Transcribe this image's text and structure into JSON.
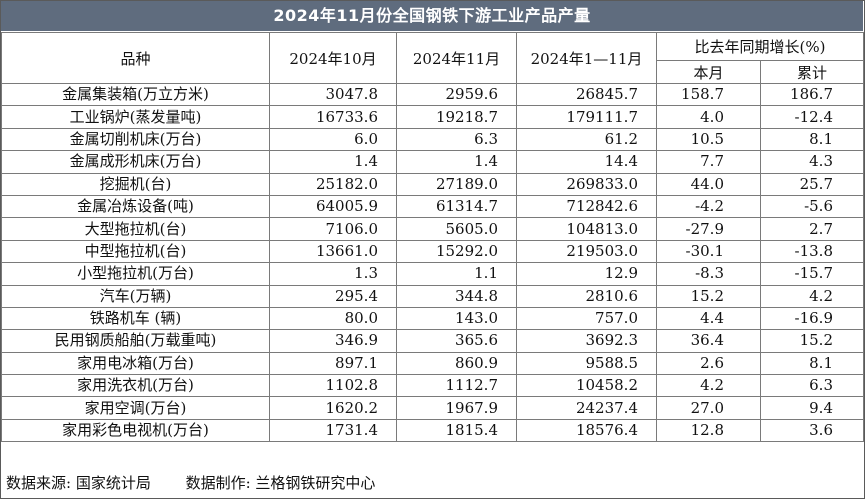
{
  "title": "2024年11月份全国钢铁下游工业产品产量",
  "header": {
    "variety": "品种",
    "oct": "2024年10月",
    "nov": "2024年11月",
    "ytd": "2024年1—11月",
    "growth": "比去年同期增长(%)",
    "month": "本月",
    "cumulative": "累计"
  },
  "rows": [
    {
      "name": "金属集装箱(万立方米)",
      "oct": "3047.8",
      "nov": "2959.6",
      "ytd": "26845.7",
      "month": "158.7",
      "cum": "186.7"
    },
    {
      "name": "工业锅炉(蒸发量吨)",
      "oct": "16733.6",
      "nov": "19218.7",
      "ytd": "179111.7",
      "month": "4.0",
      "cum": "-12.4"
    },
    {
      "name": "金属切削机床(万台)",
      "oct": "6.0",
      "nov": "6.3",
      "ytd": "61.2",
      "month": "10.5",
      "cum": "8.1"
    },
    {
      "name": "金属成形机床(万台)",
      "oct": "1.4",
      "nov": "1.4",
      "ytd": "14.4",
      "month": "7.7",
      "cum": "4.3"
    },
    {
      "name": "挖掘机(台)",
      "oct": "25182.0",
      "nov": "27189.0",
      "ytd": "269833.0",
      "month": "44.0",
      "cum": "25.7"
    },
    {
      "name": "金属冶炼设备(吨)",
      "oct": "64005.9",
      "nov": "61314.7",
      "ytd": "712842.6",
      "month": "-4.2",
      "cum": "-5.6"
    },
    {
      "name": "大型拖拉机(台)",
      "oct": "7106.0",
      "nov": "5605.0",
      "ytd": "104813.0",
      "month": "-27.9",
      "cum": "2.7"
    },
    {
      "name": "中型拖拉机(台)",
      "oct": "13661.0",
      "nov": "15292.0",
      "ytd": "219503.0",
      "month": "-30.1",
      "cum": "-13.8"
    },
    {
      "name": "小型拖拉机(万台)",
      "oct": "1.3",
      "nov": "1.1",
      "ytd": "12.9",
      "month": "-8.3",
      "cum": "-15.7"
    },
    {
      "name": "汽车(万辆)",
      "oct": "295.4",
      "nov": "344.8",
      "ytd": "2810.6",
      "month": "15.2",
      "cum": "4.2"
    },
    {
      "name": "铁路机车 (辆)",
      "oct": "80.0",
      "nov": "143.0",
      "ytd": "757.0",
      "month": "4.4",
      "cum": "-16.9"
    },
    {
      "name": "民用钢质船舶(万载重吨)",
      "oct": "346.9",
      "nov": "365.6",
      "ytd": "3692.3",
      "month": "36.4",
      "cum": "15.2"
    },
    {
      "name": "家用电冰箱(万台)",
      "oct": "897.1",
      "nov": "860.9",
      "ytd": "9588.5",
      "month": "2.6",
      "cum": "8.1"
    },
    {
      "name": "家用洗衣机(万台)",
      "oct": "1102.8",
      "nov": "1112.7",
      "ytd": "10458.2",
      "month": "4.2",
      "cum": "6.3"
    },
    {
      "name": "家用空调(万台)",
      "oct": "1620.2",
      "nov": "1967.9",
      "ytd": "24237.4",
      "month": "27.0",
      "cum": "9.4"
    },
    {
      "name": "家用彩色电视机(万台)",
      "oct": "1731.4",
      "nov": "1815.4",
      "ytd": "18576.4",
      "month": "12.8",
      "cum": "3.6"
    }
  ],
  "footer": {
    "source": "数据来源: 国家统计局",
    "producer": "数据制作: 兰格钢铁研究中心"
  }
}
